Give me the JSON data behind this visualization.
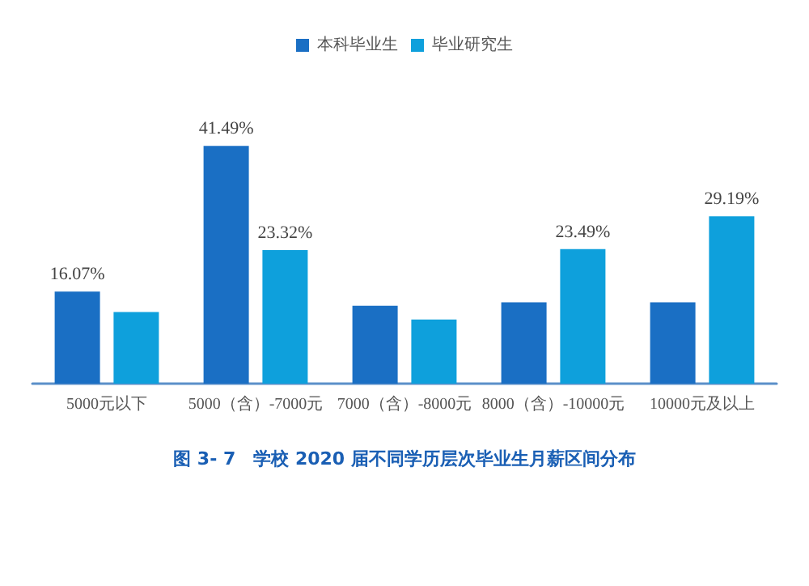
{
  "chart_data": {
    "type": "bar",
    "title": "图 3- 7　学校 2020 届不同学历层次毕业生月薪区间分布",
    "categories": [
      "5000元以下",
      "5000（含）-7000元",
      "7000（含）-8000元",
      "8000（含）-10000元",
      "10000元及以上"
    ],
    "series": [
      {
        "name": "本科毕业生",
        "color": "#1a6fc4",
        "values": [
          16.07,
          41.49,
          13.6,
          14.2,
          14.2
        ],
        "value_labels": [
          "16.07%",
          "41.49%",
          null,
          null,
          null
        ]
      },
      {
        "name": "毕业研究生",
        "color": "#0ea0dc",
        "values": [
          12.5,
          23.32,
          11.2,
          23.49,
          29.19
        ],
        "value_labels": [
          null,
          "23.32%",
          null,
          "23.49%",
          "29.19%"
        ]
      }
    ],
    "legend": "top"
  }
}
